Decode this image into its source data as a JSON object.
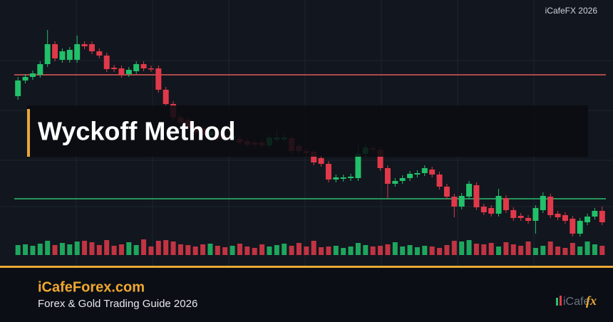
{
  "chart_data": {
    "type": "candlestick",
    "title": "Wyckoff Method",
    "watermark": "iCafeFX 2026",
    "site": "iCafeForex.com",
    "subtitle": "Forex & Gold Trading Guide 2026",
    "logo": {
      "left": "iCafe",
      "right": "fx"
    },
    "ylim": [
      70,
      370
    ],
    "volume_ylim": [
      0,
      25
    ],
    "up_color": "#22c06a",
    "down_color": "#e0394a",
    "levels": [
      {
        "value": 295,
        "color": "#e05a5a"
      },
      {
        "value": 121,
        "color": "#2bbf6e"
      }
    ],
    "open": [
      265,
      287,
      292,
      295,
      310,
      338,
      316,
      316,
      316,
      338,
      338,
      328,
      322,
      305,
      304,
      296,
      300,
      310,
      304,
      304,
      274,
      254,
      235,
      232,
      222,
      220,
      210,
      215,
      210,
      205,
      205,
      202,
      200,
      200,
      196,
      204,
      204,
      206,
      195,
      188,
      187,
      178,
      170,
      148,
      149,
      150,
      150,
      184,
      192,
      190,
      164,
      142,
      146,
      150,
      155,
      157,
      162,
      155,
      138,
      124,
      110,
      124,
      140,
      110,
      108,
      100,
      122,
      105,
      97,
      94,
      90,
      105,
      124,
      100,
      98,
      93,
      72,
      88,
      96,
      104
    ],
    "high": [
      292,
      296,
      301,
      314,
      358,
      342,
      332,
      334,
      350,
      342,
      342,
      332,
      326,
      309,
      308,
      306,
      314,
      314,
      308,
      308,
      278,
      258,
      239,
      236,
      226,
      224,
      219,
      219,
      214,
      214,
      209,
      206,
      204,
      204,
      211,
      218,
      211,
      210,
      199,
      192,
      191,
      182,
      174,
      155,
      155,
      156,
      197,
      197,
      196,
      194,
      168,
      150,
      154,
      160,
      161,
      168,
      166,
      159,
      142,
      128,
      129,
      146,
      144,
      114,
      112,
      135,
      126,
      109,
      101,
      98,
      112,
      130,
      128,
      104,
      102,
      97,
      94,
      100,
      108,
      110
    ],
    "low": [
      260,
      283,
      288,
      291,
      306,
      314,
      312,
      312,
      312,
      331,
      324,
      318,
      299,
      299,
      291,
      292,
      296,
      300,
      299,
      270,
      250,
      231,
      224,
      216,
      210,
      206,
      206,
      201,
      201,
      201,
      196,
      193,
      193,
      192,
      192,
      200,
      200,
      184,
      184,
      181,
      168,
      166,
      144,
      144,
      145,
      146,
      146,
      180,
      186,
      160,
      122,
      138,
      142,
      146,
      151,
      153,
      151,
      134,
      120,
      95,
      106,
      120,
      105,
      98,
      96,
      96,
      101,
      90,
      90,
      86,
      72,
      101,
      94,
      91,
      86,
      68,
      68,
      84,
      92,
      84
    ],
    "close": [
      287,
      292,
      297,
      310,
      338,
      318,
      328,
      330,
      338,
      335,
      328,
      322,
      303,
      303,
      295,
      302,
      310,
      304,
      303,
      274,
      254,
      235,
      228,
      220,
      214,
      210,
      215,
      205,
      205,
      210,
      200,
      197,
      197,
      196,
      207,
      207,
      207,
      188,
      188,
      185,
      172,
      170,
      148,
      151,
      151,
      152,
      184,
      193,
      190,
      164,
      142,
      146,
      150,
      156,
      157,
      164,
      155,
      138,
      124,
      110,
      125,
      142,
      109,
      102,
      100,
      125,
      105,
      94,
      94,
      90,
      108,
      125,
      98,
      95,
      90,
      72,
      90,
      96,
      104,
      88
    ],
    "volume": [
      14,
      15,
      13,
      16,
      20,
      14,
      17,
      15,
      19,
      20,
      18,
      14,
      21,
      13,
      15,
      18,
      14,
      22,
      12,
      20,
      21,
      19,
      15,
      14,
      12,
      15,
      16,
      13,
      11,
      13,
      16,
      12,
      10,
      15,
      12,
      14,
      16,
      13,
      17,
      12,
      20,
      11,
      12,
      13,
      10,
      12,
      17,
      14,
      12,
      13,
      15,
      18,
      12,
      14,
      11,
      13,
      12,
      10,
      14,
      20,
      19,
      21,
      16,
      15,
      17,
      12,
      18,
      15,
      13,
      19,
      10,
      13,
      19,
      12,
      10,
      17,
      12,
      19,
      15,
      13
    ]
  }
}
